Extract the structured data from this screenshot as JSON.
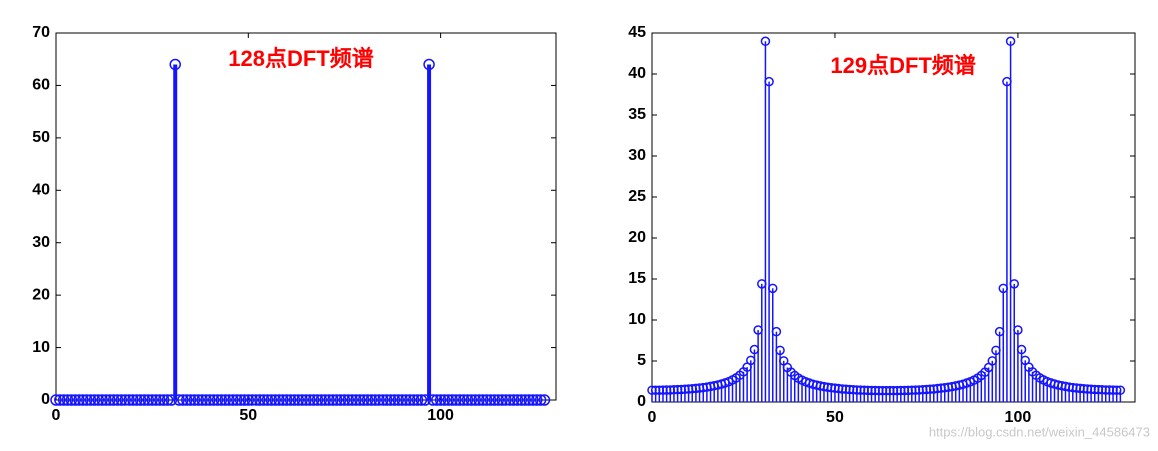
{
  "chart_data": [
    {
      "type": "stem",
      "annotation": "128点DFT频谱",
      "color": "#1414ff",
      "annotation_color": "#ff0000",
      "x": [
        0,
        1,
        2,
        3,
        4,
        5,
        6,
        7,
        8,
        9,
        10,
        11,
        12,
        13,
        14,
        15,
        16,
        17,
        18,
        19,
        20,
        21,
        22,
        23,
        24,
        25,
        26,
        27,
        28,
        29,
        30,
        31,
        32,
        33,
        34,
        35,
        36,
        37,
        38,
        39,
        40,
        41,
        42,
        43,
        44,
        45,
        46,
        47,
        48,
        49,
        50,
        51,
        52,
        53,
        54,
        55,
        56,
        57,
        58,
        59,
        60,
        61,
        62,
        63,
        64,
        65,
        66,
        67,
        68,
        69,
        70,
        71,
        72,
        73,
        74,
        75,
        76,
        77,
        78,
        79,
        80,
        81,
        82,
        83,
        84,
        85,
        86,
        87,
        88,
        89,
        90,
        91,
        92,
        93,
        94,
        95,
        96,
        97,
        98,
        99,
        100,
        101,
        102,
        103,
        104,
        105,
        106,
        107,
        108,
        109,
        110,
        111,
        112,
        113,
        114,
        115,
        116,
        117,
        118,
        119,
        120,
        121,
        122,
        123,
        124,
        125,
        126,
        127
      ],
      "values": [
        0,
        0,
        0,
        0,
        0,
        0,
        0,
        0,
        0,
        0,
        0,
        0,
        0,
        0,
        0,
        0,
        0,
        0,
        0,
        0,
        0,
        0,
        0,
        0,
        0,
        0,
        0,
        0,
        0,
        0,
        0,
        64,
        0,
        0,
        0,
        0,
        0,
        0,
        0,
        0,
        0,
        0,
        0,
        0,
        0,
        0,
        0,
        0,
        0,
        0,
        0,
        0,
        0,
        0,
        0,
        0,
        0,
        0,
        0,
        0,
        0,
        0,
        0,
        0,
        0,
        0,
        0,
        0,
        0,
        0,
        0,
        0,
        0,
        0,
        0,
        0,
        0,
        0,
        0,
        0,
        0,
        0,
        0,
        0,
        0,
        0,
        0,
        0,
        0,
        0,
        0,
        0,
        0,
        0,
        0,
        0,
        0,
        64,
        0,
        0,
        0,
        0,
        0,
        0,
        0,
        0,
        0,
        0,
        0,
        0,
        0,
        0,
        0,
        0,
        0,
        0,
        0,
        0,
        0,
        0,
        0,
        0,
        0,
        0,
        0,
        0,
        0,
        0
      ],
      "xlim": [
        0,
        130
      ],
      "xticks": [
        0,
        50,
        100
      ],
      "ylim": [
        0,
        70
      ],
      "yticks": [
        0,
        10,
        20,
        30,
        40,
        50,
        60,
        70
      ]
    },
    {
      "type": "stem",
      "annotation": "129点DFT频谱",
      "color": "#1414ff",
      "annotation_color": "#ff0000",
      "x": [
        0,
        1,
        2,
        3,
        4,
        5,
        6,
        7,
        8,
        9,
        10,
        11,
        12,
        13,
        14,
        15,
        16,
        17,
        18,
        19,
        20,
        21,
        22,
        23,
        24,
        25,
        26,
        27,
        28,
        29,
        30,
        31,
        32,
        33,
        34,
        35,
        36,
        37,
        38,
        39,
        40,
        41,
        42,
        43,
        44,
        45,
        46,
        47,
        48,
        49,
        50,
        51,
        52,
        53,
        54,
        55,
        56,
        57,
        58,
        59,
        60,
        61,
        62,
        63,
        64,
        65,
        66,
        67,
        68,
        69,
        70,
        71,
        72,
        73,
        74,
        75,
        76,
        77,
        78,
        79,
        80,
        81,
        82,
        83,
        84,
        85,
        86,
        87,
        88,
        89,
        90,
        91,
        92,
        93,
        94,
        95,
        96,
        97,
        98,
        99,
        100,
        101,
        102,
        103,
        104,
        105,
        106,
        107,
        108,
        109,
        110,
        111,
        112,
        113,
        114,
        115,
        116,
        117,
        118,
        119,
        120,
        121,
        122,
        123,
        124,
        125,
        126,
        127,
        128
      ],
      "values": [
        1.44,
        1.44,
        1.44,
        1.45,
        1.46,
        1.47,
        1.49,
        1.51,
        1.53,
        1.55,
        1.59,
        1.62,
        1.66,
        1.71,
        1.76,
        1.82,
        1.9,
        1.98,
        2.08,
        2.19,
        2.33,
        2.49,
        2.7,
        2.94,
        3.26,
        3.68,
        4.25,
        5.08,
        6.4,
        8.78,
        14.41,
        43.99,
        39.07,
        13.86,
        8.58,
        6.3,
        5.02,
        4.21,
        3.64,
        3.23,
        2.91,
        2.67,
        2.47,
        2.31,
        2.17,
        2.06,
        1.96,
        1.88,
        1.8,
        1.74,
        1.69,
        1.64,
        1.59,
        1.56,
        1.53,
        1.5,
        1.47,
        1.45,
        1.43,
        1.42,
        1.41,
        1.4,
        1.39,
        1.39,
        1.38,
        1.38,
        1.39,
        1.39,
        1.4,
        1.41,
        1.42,
        1.43,
        1.45,
        1.47,
        1.5,
        1.53,
        1.56,
        1.59,
        1.64,
        1.69,
        1.74,
        1.8,
        1.88,
        1.96,
        2.06,
        2.17,
        2.31,
        2.47,
        2.67,
        2.91,
        3.23,
        3.64,
        4.21,
        5.02,
        6.3,
        8.58,
        13.86,
        39.07,
        43.99,
        14.41,
        8.78,
        6.4,
        5.08,
        4.25,
        3.68,
        3.26,
        2.94,
        2.7,
        2.49,
        2.33,
        2.19,
        2.08,
        1.98,
        1.9,
        1.82,
        1.76,
        1.71,
        1.66,
        1.62,
        1.59,
        1.55,
        1.53,
        1.51,
        1.49,
        1.47,
        1.46,
        1.45,
        1.44,
        1.44
      ],
      "xlim": [
        0,
        132
      ],
      "xticks": [
        0,
        50,
        100
      ],
      "ylim": [
        0,
        45
      ],
      "yticks": [
        0,
        5,
        10,
        15,
        20,
        25,
        30,
        35,
        40,
        45
      ]
    }
  ],
  "watermark": "https://blog.csdn.net/weixin_44586473"
}
